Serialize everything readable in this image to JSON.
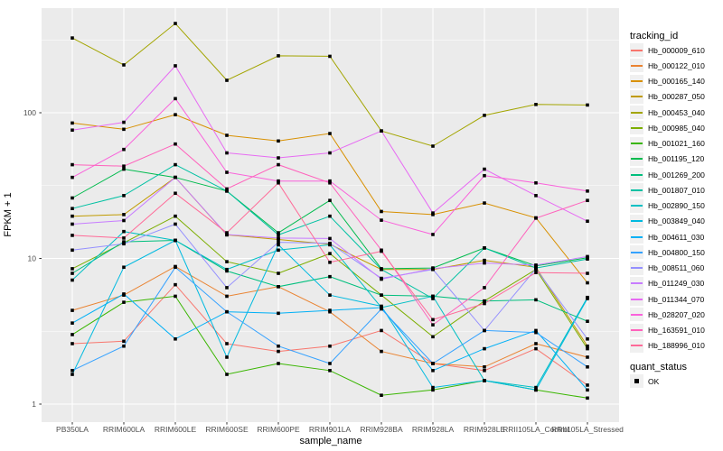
{
  "chart_data": {
    "type": "line",
    "title": "",
    "xlabel": "sample_name",
    "ylabel": "FPKM + 1",
    "yscale": "log10",
    "yticks": {
      "values": [
        1,
        10,
        100
      ],
      "labels": [
        "1",
        "10",
        "100"
      ]
    },
    "yminor": [
      3.1623,
      31.623,
      316.23
    ],
    "ylim": [
      0.75,
      522
    ],
    "grid": true,
    "panel_bg": "#EBEBEB",
    "grid_color": "#FFFFFF",
    "tick_color": "#333333",
    "tick_label_color": "#4D4D4D",
    "marker": "black-square",
    "marker_color": "#000000",
    "categories": [
      "PB350LA",
      "RRIM600LA",
      "RRIM600LE",
      "RRIM600SE",
      "RRIM600PE",
      "RRIM901LA",
      "RRIM928BA",
      "RRIM928LA",
      "RRIM928LE",
      "RRII105LA_Control",
      "RRII105LA_Stressed"
    ],
    "legend": {
      "title": "tracking_id",
      "position": "right"
    },
    "legend2": {
      "title": "quant_status",
      "items": [
        {
          "label": "OK",
          "marker": "black-square"
        }
      ]
    },
    "series": [
      {
        "name": "Hb_000009_610",
        "color": "#F8766D",
        "values": [
          2.6,
          2.7,
          6.6,
          2.6,
          2.3,
          2.5,
          3.2,
          1.9,
          1.7,
          2.4,
          1.35
        ]
      },
      {
        "name": "Hb_000122_010",
        "color": "#EA8331",
        "values": [
          4.4,
          5.6,
          8.8,
          5.5,
          6.4,
          4.3,
          2.3,
          1.9,
          1.8,
          2.6,
          2.1
        ]
      },
      {
        "name": "Hb_000165_140",
        "color": "#D89000",
        "values": [
          85,
          77,
          97,
          70,
          64,
          72,
          21,
          20,
          24,
          19,
          6.8
        ]
      },
      {
        "name": "Hb_000287_050",
        "color": "#C09B00",
        "values": [
          19.5,
          20,
          36,
          14.5,
          13.5,
          12.5,
          8.4,
          8.4,
          9.7,
          8.7,
          2.5
        ]
      },
      {
        "name": "Hb_000453_040",
        "color": "#A3A500",
        "values": [
          326,
          213,
          410,
          167,
          246,
          244,
          75,
          59,
          96,
          114,
          113
        ]
      },
      {
        "name": "Hb_000985_040",
        "color": "#7CAE00",
        "values": [
          8.5,
          12.8,
          19.5,
          9.5,
          7.9,
          10.8,
          5.6,
          2.9,
          5.1,
          8.4,
          2.4
        ]
      },
      {
        "name": "Hb_001021_160",
        "color": "#39B600",
        "values": [
          3.0,
          5.0,
          5.5,
          1.6,
          1.9,
          1.7,
          1.15,
          1.25,
          1.45,
          1.25,
          1.1
        ]
      },
      {
        "name": "Hb_001195_120",
        "color": "#00BB4E",
        "values": [
          26,
          41,
          36,
          29,
          15,
          25,
          8.5,
          8.6,
          11.8,
          8.9,
          10.1
        ]
      },
      {
        "name": "Hb_001269_200",
        "color": "#00BF7D",
        "values": [
          7.9,
          13,
          13.3,
          8.2,
          6.4,
          7.5,
          5.6,
          5.5,
          5.1,
          5.2,
          3.7
        ]
      },
      {
        "name": "Hb_001807_010",
        "color": "#00C1A3",
        "values": [
          22,
          27,
          44,
          29,
          14.5,
          19.5,
          8.4,
          5.3,
          11.8,
          8.6,
          9.9
        ]
      },
      {
        "name": "Hb_002890_150",
        "color": "#00BFC4",
        "values": [
          7.1,
          15.3,
          13.3,
          8.4,
          11.4,
          12.4,
          4.6,
          5.5,
          1.45,
          1.3,
          5.4
        ]
      },
      {
        "name": "Hb_003849_040",
        "color": "#00BAE0",
        "values": [
          1.6,
          8.7,
          13.3,
          2.1,
          12.4,
          5.6,
          4.7,
          1.3,
          1.45,
          1.25,
          5.3
        ]
      },
      {
        "name": "Hb_004611_030",
        "color": "#00B0F6",
        "values": [
          3.6,
          5.7,
          2.8,
          4.3,
          4.2,
          4.4,
          4.6,
          1.7,
          2.4,
          3.2,
          1.25
        ]
      },
      {
        "name": "Hb_004800_150",
        "color": "#35A2FF",
        "values": [
          1.7,
          2.5,
          8.7,
          4.3,
          2.5,
          1.9,
          4.5,
          1.9,
          3.2,
          3.1,
          1.8
        ]
      },
      {
        "name": "Hb_008511_060",
        "color": "#9590FF",
        "values": [
          11.4,
          12.6,
          17.2,
          6.3,
          12.9,
          12.7,
          7.3,
          8.4,
          3.2,
          8.5,
          2.8
        ]
      },
      {
        "name": "Hb_011249_030",
        "color": "#C77CFF",
        "values": [
          17.2,
          18.2,
          36,
          14.6,
          13.8,
          13.7,
          7.2,
          8.5,
          9.3,
          9.0,
          10.3
        ]
      },
      {
        "name": "Hb_011344_070",
        "color": "#E76BF3",
        "values": [
          76,
          86,
          210,
          53,
          49,
          53,
          75,
          20.5,
          41,
          27,
          18
        ]
      },
      {
        "name": "Hb_028207_020",
        "color": "#FA62DB",
        "values": [
          36,
          56,
          125,
          39,
          34,
          34,
          18.3,
          14.6,
          37,
          33,
          29
        ]
      },
      {
        "name": "Hb_163591_010",
        "color": "#FF62BC",
        "values": [
          44,
          43,
          61,
          30,
          44,
          33,
          11.4,
          3.5,
          6.3,
          18.9,
          25
        ]
      },
      {
        "name": "Hb_188996_010",
        "color": "#FF6A98",
        "values": [
          14.4,
          13.8,
          28,
          15,
          33,
          9.4,
          11.2,
          3.8,
          4.9,
          8.0,
          7.9
        ]
      }
    ]
  }
}
